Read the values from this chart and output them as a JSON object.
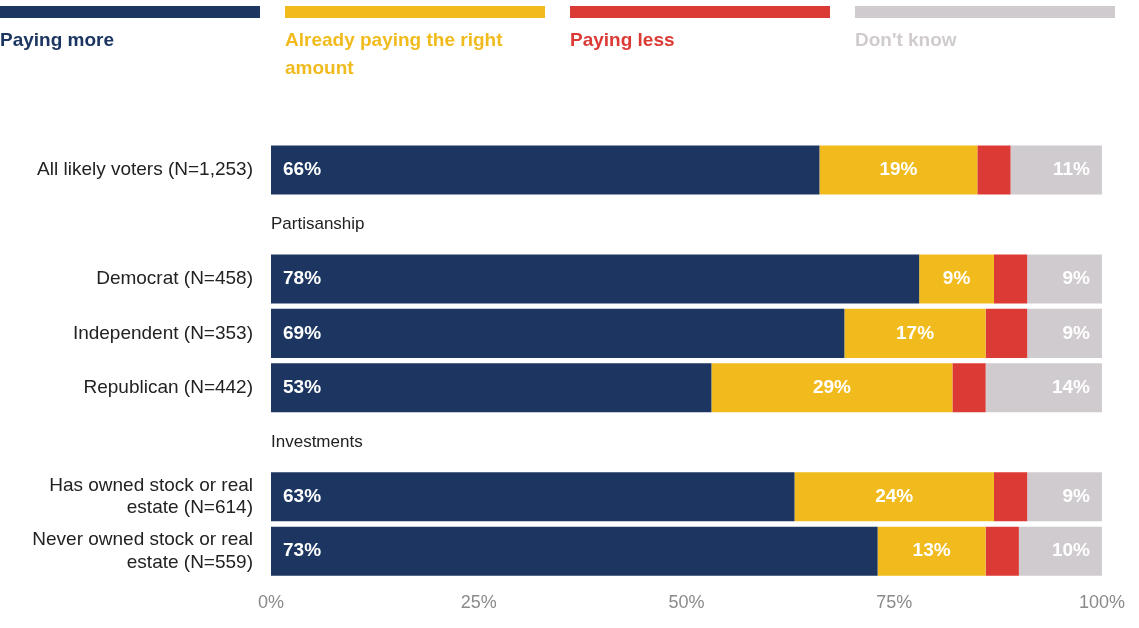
{
  "chart_data": {
    "type": "bar",
    "orientation": "horizontal",
    "stacked": true,
    "legend": "top",
    "grid": false,
    "categories": [
      "All likely voters (N=1,253)",
      "Partisanship",
      "Democrat (N=458)",
      "Independent (N=353)",
      "Republican (N=442)",
      "Investments",
      "Has owned stock or real estate (N=614)",
      "Never owned stock or real estate (N=559)"
    ],
    "series": [
      {
        "name": "Paying more",
        "color": "#1c3661",
        "values": [
          66,
          null,
          78,
          69,
          53,
          null,
          63,
          73
        ],
        "value_labels": [
          "66%",
          null,
          "78%",
          "69%",
          "53%",
          null,
          "63%",
          "73%"
        ]
      },
      {
        "name": "Already paying the right amount",
        "color": "#f1bb1e",
        "values": [
          19,
          null,
          9,
          17,
          29,
          null,
          24,
          13
        ],
        "value_labels": [
          "19%",
          null,
          "9%",
          "17%",
          "29%",
          null,
          "24%",
          "13%"
        ]
      },
      {
        "name": "Paying less",
        "color": "#dc3a35",
        "values": [
          4,
          null,
          4,
          5,
          4,
          null,
          4,
          4
        ]
      },
      {
        "name": "Don't know",
        "color": "#d0cbcf",
        "values": [
          11,
          null,
          9,
          9,
          14,
          null,
          9,
          10
        ],
        "value_labels": [
          "11%",
          null,
          "9%",
          "9%",
          "14%",
          null,
          "9%",
          "10%"
        ]
      }
    ],
    "xlim": [
      0,
      100
    ],
    "xticks": [
      {
        "value": 0,
        "label": "0%"
      },
      {
        "value": 25,
        "label": "25%"
      },
      {
        "value": 50,
        "label": "50%"
      },
      {
        "value": 75,
        "label": "75%"
      },
      {
        "value": 100,
        "label": "100%"
      }
    ]
  }
}
